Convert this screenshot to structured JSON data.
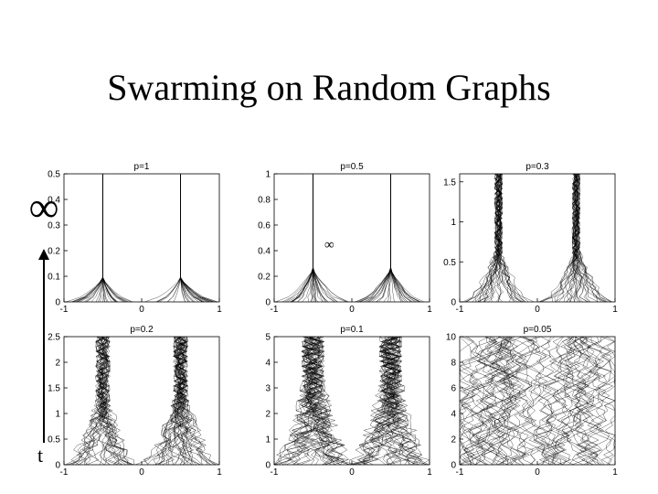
{
  "slide": {
    "title": "Swarming on Random Graphs",
    "infinity_symbol": "∞",
    "time_label": "t"
  },
  "chart_data": [
    {
      "type": "line",
      "title": "p=1",
      "xlim": [
        -1,
        1
      ],
      "ylim": [
        0,
        0.5
      ],
      "x_ticks": [
        "-1",
        "0",
        "1"
      ],
      "y_ticks": [
        "0",
        "0.1",
        "0.2",
        "0.3",
        "0.4",
        "0.5"
      ],
      "description": "Trajectories starting spread over [-1,1] converge into two clusters near x=-0.5 and x=0.5 that then become straight vertical lines."
    },
    {
      "type": "line",
      "title": "p=0.5",
      "xlim": [
        -1,
        1
      ],
      "ylim": [
        0,
        1
      ],
      "x_ticks": [
        "-1",
        "0",
        "1"
      ],
      "y_ticks": [
        "0",
        "0.2",
        "0.4",
        "0.6",
        "0.8",
        "1"
      ],
      "annotation": "∞",
      "description": "Trajectories converge into two clusters near x=-0.5 and x=0.5."
    },
    {
      "type": "line",
      "title": "p=0.3",
      "xlim": [
        -1,
        1
      ],
      "ylim": [
        0,
        1.6
      ],
      "x_ticks": [
        "-1",
        "0",
        "1"
      ],
      "y_ticks": [
        "0",
        "0.5",
        "1",
        "1.5"
      ],
      "description": "Noisier trajectories converging into two clusters near x=-0.5 and x=0.5."
    },
    {
      "type": "line",
      "title": "p=0.2",
      "xlim": [
        -1,
        1
      ],
      "ylim": [
        0,
        2.5
      ],
      "x_ticks": [
        "-1",
        "0",
        "1"
      ],
      "y_ticks": [
        "0",
        "0.5",
        "1",
        "1.5",
        "2",
        "2.5"
      ],
      "description": "Noisy trajectories forming two bundles near x=-0.5 and x=0.5 with many stray paths."
    },
    {
      "type": "line",
      "title": "p=0.1",
      "xlim": [
        -1,
        1
      ],
      "ylim": [
        0,
        5
      ],
      "x_ticks": [
        "-1",
        "0",
        "1"
      ],
      "y_ticks": [
        "0",
        "1",
        "2",
        "3",
        "4",
        "5"
      ],
      "description": "Very noisy trajectories with two loose bundles near x=-0.5 and x=0.5."
    },
    {
      "type": "line",
      "title": "p=0.05",
      "xlim": [
        -1,
        1
      ],
      "ylim": [
        0,
        10
      ],
      "x_ticks": [
        "-1",
        "0",
        "1"
      ],
      "y_ticks": [
        "0",
        "2",
        "4",
        "6",
        "8",
        "10"
      ],
      "description": "Trajectories wander broadly across [-1,1] with no clear clustering."
    }
  ],
  "colors": {
    "line": "#000000",
    "axis": "#000000",
    "background": "#ffffff"
  }
}
